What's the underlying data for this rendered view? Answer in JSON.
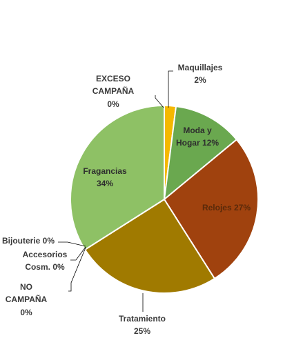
{
  "chart_data": {
    "type": "pie",
    "title": "",
    "slices": [
      {
        "label": "Maquillajes",
        "value": 2,
        "value_text": "2%",
        "color": "#F5B800"
      },
      {
        "label": "Moda y Hogar",
        "value": 12,
        "value_text": "12%",
        "color": "#6AA84F"
      },
      {
        "label": "Relojes",
        "value": 27,
        "value_text": "27%",
        "color": "#A0420E"
      },
      {
        "label": "Tratamiento",
        "value": 25,
        "value_text": "25%",
        "color": "#A07A00"
      },
      {
        "label": "NO CAMPAÑA",
        "value": 0,
        "value_text": "0%",
        "color": "#C9C9C9"
      },
      {
        "label": "Accesorios Cosm.",
        "value": 0,
        "value_text": "0%",
        "color": "#B7B7B7"
      },
      {
        "label": "Bijouterie",
        "value": 0,
        "value_text": "0%",
        "color": "#A5A5A5"
      },
      {
        "label": "Fragancias",
        "value": 34,
        "value_text": "34%",
        "color": "#8EC165"
      },
      {
        "label": "EXCESO CAMPAÑA",
        "value": 0,
        "value_text": "0%",
        "color": "#D9D9D9"
      }
    ],
    "legend": "none",
    "start_angle": "12 o'clock, clockwise"
  },
  "labels": {
    "maquillajes_name": "Maquillajes",
    "maquillajes_pct": "2%",
    "moda_line1": "Moda y",
    "moda_line2": "Hogar 12%",
    "relojes": "Relojes 27%",
    "tratamiento_name": "Tratamiento",
    "tratamiento_pct": "25%",
    "no_campana_line1": "NO",
    "no_campana_line2": "CAMPAÑA",
    "no_campana_pct": "0%",
    "accesorios_line1": "Accesorios",
    "accesorios_line2": "Cosm. 0%",
    "bijouterie": "Bijouterie 0%",
    "fragancias_name": "Fragancias",
    "fragancias_pct": "34%",
    "exceso_line1": "EXCESO",
    "exceso_line2": "CAMPAÑA",
    "exceso_pct": "0%"
  }
}
